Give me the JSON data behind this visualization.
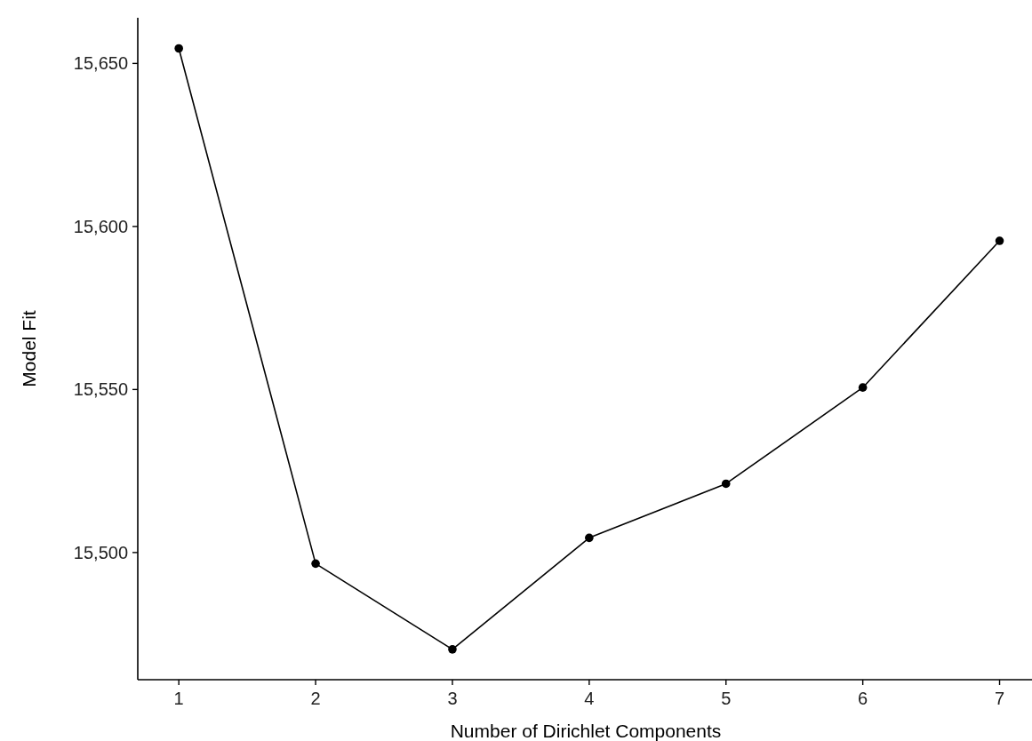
{
  "chart_data": {
    "type": "line",
    "xlabel": "Number of Dirichlet Components",
    "ylabel": "Model Fit",
    "x": [
      1,
      2,
      3,
      4,
      5,
      6,
      7
    ],
    "series": [
      {
        "color": "#000000",
        "values": [
          15654.6,
          15496.6,
          15470.3,
          15504.5,
          15521.1,
          15550.6,
          15595.6
        ]
      }
    ],
    "xlim": [
      0.7,
      7.25
    ],
    "xticks": [
      1,
      2,
      3,
      4,
      5,
      6,
      7
    ],
    "ylim": [
      15461,
      15664
    ],
    "yticks": [
      {
        "value": 15500,
        "label": "15,500"
      },
      {
        "value": 15550,
        "label": "15,550"
      },
      {
        "value": 15600,
        "label": "15,600"
      },
      {
        "value": 15650,
        "label": "15,650"
      }
    ],
    "marker": "circle",
    "line_style": "solid"
  }
}
